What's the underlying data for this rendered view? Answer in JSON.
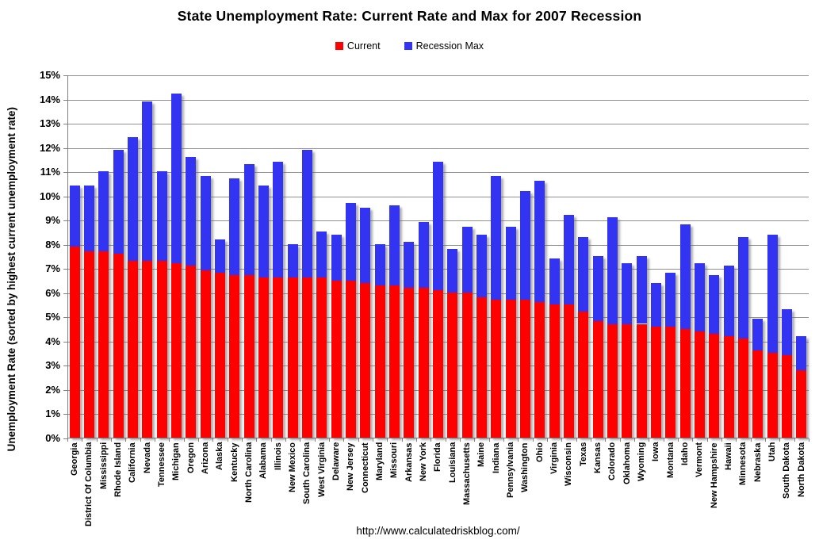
{
  "title": "State Unemployment Rate: Current Rate and Max for 2007 Recession",
  "y_axis_title": "Unemployment Rate (sorted by highest current unemployment rate)",
  "footer_url": "http://www.calculatedriskblog.com/",
  "legend": [
    {
      "label": "Current",
      "color": "#FF0000"
    },
    {
      "label": "Recession Max",
      "color": "#3333F2"
    }
  ],
  "colors": {
    "current": "#FF0000",
    "recession_max": "#3333F2",
    "gridline": "#8F8F8F",
    "axis": "#7F7F7F"
  },
  "chart_data": {
    "type": "bar",
    "stacked": true,
    "note": "Recession Max values are total bar heights; blue segment drawn is max minus current",
    "title": "State Unemployment Rate: Current Rate and Max for 2007 Recession",
    "xlabel": "",
    "ylabel": "Unemployment Rate (sorted by highest current unemployment rate)",
    "ylim": [
      0,
      15
    ],
    "y_tick_step": 1,
    "y_tick_labels": [
      "0%",
      "1%",
      "2%",
      "3%",
      "4%",
      "5%",
      "6%",
      "7%",
      "8%",
      "9%",
      "10%",
      "11%",
      "12%",
      "13%",
      "14%",
      "15%"
    ],
    "grid": "horizontal",
    "legend_position": "top",
    "categories": [
      "Georgia",
      "District Of Columbia",
      "Mississippi",
      "Rhode Island",
      "California",
      "Nevada",
      "Tennessee",
      "Michigan",
      "Oregon",
      "Arizona",
      "Alaska",
      "Kentucky",
      "North Carolina",
      "Alabama",
      "Illinois",
      "New Mexico",
      "South Carolina",
      "West Virginia",
      "Delaware",
      "New Jersey",
      "Connecticut",
      "Maryland",
      "Missouri",
      "Arkansas",
      "New York",
      "Florida",
      "Louisiana",
      "Massachusetts",
      "Maine",
      "Indiana",
      "Pennsylvania",
      "Washington",
      "Ohio",
      "Virginia",
      "Wisconsin",
      "Texas",
      "Kansas",
      "Colorado",
      "Oklahoma",
      "Wyoming",
      "Iowa",
      "Montana",
      "Idaho",
      "Vermont",
      "New Hampshire",
      "Hawaii",
      "Minnesota",
      "Nebraska",
      "Utah",
      "South Dakota",
      "North Dakota"
    ],
    "series": [
      {
        "name": "Current",
        "color": "#FF0000",
        "values": [
          7.9,
          7.7,
          7.7,
          7.6,
          7.3,
          7.3,
          7.3,
          7.2,
          7.1,
          6.9,
          6.8,
          6.7,
          6.7,
          6.6,
          6.6,
          6.6,
          6.6,
          6.6,
          6.5,
          6.5,
          6.4,
          6.3,
          6.3,
          6.2,
          6.2,
          6.1,
          6.0,
          6.0,
          5.8,
          5.7,
          5.7,
          5.7,
          5.6,
          5.5,
          5.5,
          5.2,
          4.8,
          4.7,
          4.7,
          4.7,
          4.6,
          4.6,
          4.5,
          4.4,
          4.3,
          4.2,
          4.1,
          3.6,
          3.5,
          3.4,
          2.8
        ]
      },
      {
        "name": "Recession Max",
        "color": "#3333F2",
        "values": [
          10.4,
          10.4,
          11.0,
          11.9,
          12.4,
          13.9,
          11.0,
          14.2,
          11.6,
          10.8,
          8.2,
          10.7,
          11.3,
          10.4,
          11.4,
          8.0,
          11.9,
          8.5,
          8.4,
          9.7,
          9.5,
          8.0,
          9.6,
          8.1,
          8.9,
          11.4,
          7.8,
          8.7,
          8.4,
          10.8,
          8.7,
          10.2,
          10.6,
          7.4,
          9.2,
          8.3,
          7.5,
          9.1,
          7.2,
          7.5,
          6.4,
          6.8,
          8.8,
          7.2,
          6.7,
          7.1,
          8.3,
          4.9,
          8.4,
          5.3,
          4.2
        ]
      }
    ]
  }
}
